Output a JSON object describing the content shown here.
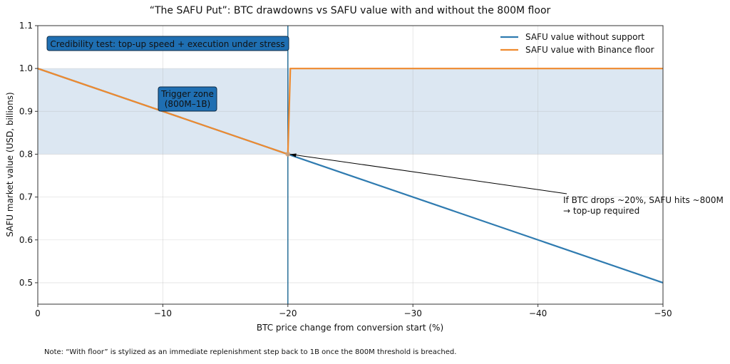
{
  "chart_data": {
    "type": "line",
    "title": "“The SAFU Put”: BTC drawdowns vs SAFU value with and without the 800M floor",
    "xlabel": "BTC price change from conversion start (%)",
    "ylabel": "SAFU market value (USD, billions)",
    "xlim": [
      0,
      -50
    ],
    "ylim": [
      0.45,
      1.1
    ],
    "xticks": [
      0,
      -10,
      -20,
      -30,
      -40,
      -50
    ],
    "xtick_labels": [
      "0",
      "−10",
      "−20",
      "−30",
      "−40",
      "−50"
    ],
    "yticks": [
      0.5,
      0.6,
      0.7,
      0.8,
      0.9,
      1.0,
      1.1
    ],
    "ytick_labels": [
      "0.5",
      "0.6",
      "0.7",
      "0.8",
      "0.9",
      "1.0",
      "1.1"
    ],
    "grid": true,
    "legend_position": "top-right",
    "series": [
      {
        "name": "SAFU value without support",
        "color": "#2f7bb0",
        "x": [
          0,
          -50
        ],
        "y": [
          1.0,
          0.5
        ]
      },
      {
        "name": "SAFU value with Binance floor",
        "color": "#ef8a2e",
        "x": [
          0,
          -20,
          -20.2,
          -50
        ],
        "y": [
          1.0,
          0.8,
          1.0,
          1.0
        ]
      }
    ],
    "shaded_band": {
      "y": [
        0.8,
        1.0
      ],
      "color": "#dce7f2"
    },
    "vertical_line": {
      "x": -20,
      "color": "#2a6f98"
    },
    "marker": {
      "x": -20,
      "y": 0.8
    },
    "annotations": [
      {
        "text": "Credibility test: top-up speed + execution under stress",
        "x": -1,
        "y": 1.06
      },
      {
        "text_lines": [
          "Trigger zone",
          "(800M–1B)"
        ],
        "x": -12,
        "y": 0.92
      },
      {
        "text_lines": [
          "If BTC drops ~20%, SAFU hits ~800M",
          "→ top-up required"
        ],
        "x": -42,
        "y": 0.69,
        "arrow_to": {
          "x": -20,
          "y": 0.8
        }
      }
    ],
    "note": "Note: “With floor” is stylized as an immediate replenishment step back to 1B once the 800M threshold is breached."
  }
}
